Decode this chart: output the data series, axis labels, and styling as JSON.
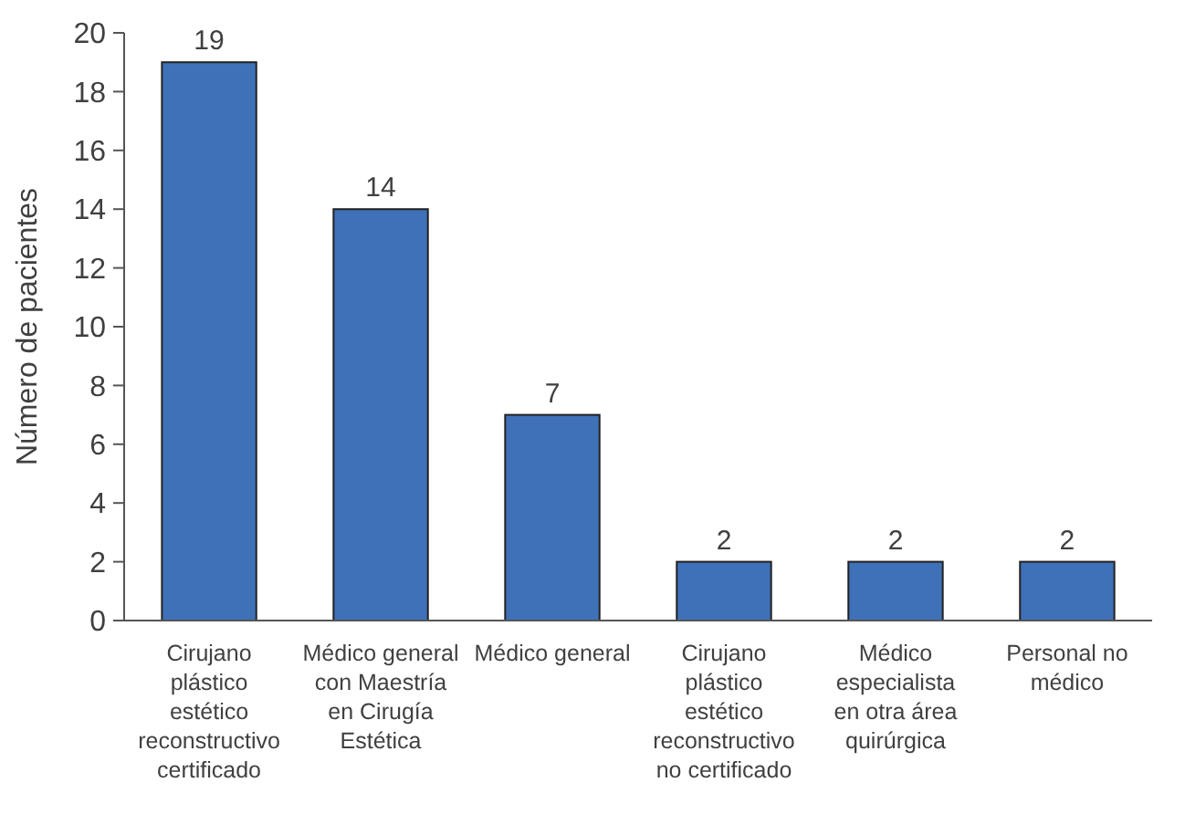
{
  "chart_data": {
    "type": "bar",
    "ylabel": "Número de pacientes",
    "categories": [
      "Cirujano plástico estético reconstructivo certificado",
      "Médico general con Maestría en Cirugía Estética",
      "Médico general",
      "Cirujano plástico estético reconstructivo no certificado",
      "Médico especialista en otra área quirúrgica",
      "Personal no médico"
    ],
    "values": [
      19,
      14,
      7,
      2,
      2,
      2
    ],
    "color": "#3f71b8",
    "ylim": [
      0,
      20
    ],
    "yticks": [
      0,
      2,
      4,
      6,
      8,
      10,
      12,
      14,
      16,
      18,
      20
    ],
    "grid": false,
    "data_labels": true
  }
}
